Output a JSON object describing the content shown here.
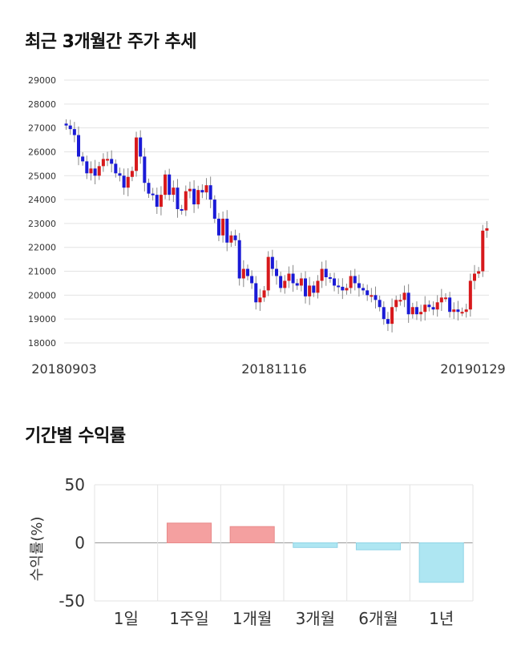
{
  "titles": {
    "price_trend": "최근 3개월간 주가 추세",
    "returns": "기간별 수익률"
  },
  "colors": {
    "up": "#d7191c",
    "down": "#1a1ad6",
    "bar_positive": "#f4a0a0",
    "bar_negative": "#aee6f2",
    "grid": "#e3e3e3"
  },
  "chart_data": [
    {
      "type": "candlestick",
      "title": "최근 3개월간 주가 추세",
      "ylim": [
        18000,
        29000
      ],
      "yticks": [
        18000,
        19000,
        20000,
        21000,
        22000,
        23000,
        24000,
        25000,
        26000,
        27000,
        28000,
        29000
      ],
      "xtick_labels": [
        "20180903",
        "20181116",
        "20190129"
      ],
      "grid": true,
      "closes": [
        27100,
        26950,
        26700,
        25800,
        25600,
        25100,
        25300,
        25000,
        25400,
        25700,
        25700,
        25500,
        25100,
        25000,
        24500,
        24950,
        25200,
        26600,
        25800,
        24700,
        24250,
        24200,
        23700,
        24200,
        25050,
        24200,
        24500,
        23600,
        23550,
        24350,
        24450,
        23800,
        24400,
        24300,
        24600,
        24000,
        23200,
        22500,
        23200,
        22200,
        22500,
        22300,
        20700,
        21100,
        20800,
        20500,
        19700,
        19900,
        20200,
        21600,
        21100,
        20800,
        20300,
        20600,
        20900,
        20500,
        20400,
        20700,
        19950,
        20400,
        20100,
        20600,
        21100,
        20750,
        20700,
        20400,
        20350,
        20200,
        20300,
        20800,
        20500,
        20300,
        20200,
        20000,
        20000,
        19800,
        19500,
        19000,
        18800,
        19500,
        19800,
        19800,
        20100,
        19200,
        19500,
        19200,
        19300,
        19600,
        19500,
        19400,
        19700,
        19900,
        19900,
        19300,
        19400,
        19300,
        19300,
        19400,
        20600,
        20900,
        21000,
        22700,
        22800
      ]
    },
    {
      "type": "bar",
      "title": "기간별 수익률",
      "ylabel": "수익률(%)",
      "ylim": [
        -50,
        50
      ],
      "yticks": [
        50,
        0,
        -50
      ],
      "categories": [
        "1일",
        "1주일",
        "1개월",
        "3개월",
        "6개월",
        "1년"
      ],
      "values": [
        0,
        17,
        14,
        -4,
        -6,
        -34
      ]
    }
  ]
}
